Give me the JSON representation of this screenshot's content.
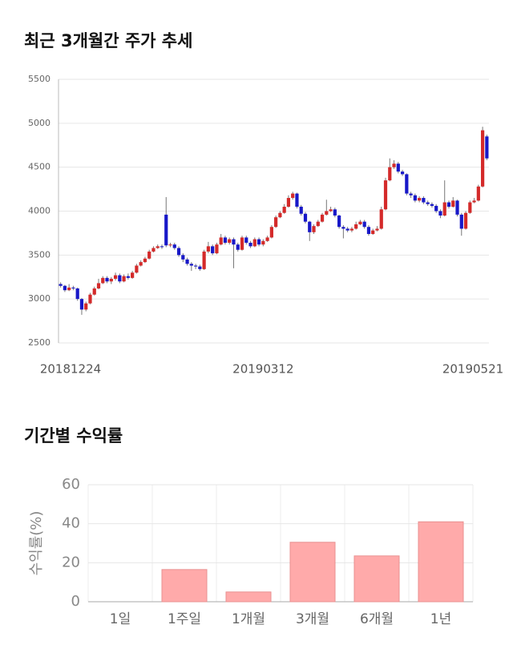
{
  "chart_data": [
    {
      "type": "candlestick",
      "title": "최근 3개월간 주가 추세",
      "categories": [
        "20181224",
        null,
        null,
        null,
        null,
        null,
        null,
        null,
        null,
        null,
        null,
        null,
        null,
        null,
        null,
        null,
        null,
        null,
        null,
        null,
        null,
        null,
        null,
        null,
        null,
        null,
        null,
        null,
        null,
        null,
        null,
        null,
        null,
        null,
        null,
        null,
        null,
        null,
        null,
        null,
        null,
        null,
        null,
        null,
        null,
        null,
        null,
        null,
        "20190312",
        null,
        null,
        null,
        null,
        null,
        null,
        null,
        null,
        null,
        null,
        null,
        null,
        null,
        null,
        null,
        null,
        null,
        null,
        null,
        null,
        null,
        null,
        null,
        null,
        null,
        null,
        null,
        null,
        null,
        null,
        null,
        null,
        null,
        null,
        null,
        null,
        null,
        null,
        null,
        null,
        null,
        null,
        null,
        null,
        null,
        null,
        null,
        null,
        null,
        null,
        null,
        null,
        "20190521"
      ],
      "open": [
        3170,
        3150,
        3100,
        3130,
        3120,
        3000,
        2880,
        2950,
        3050,
        3120,
        3180,
        3240,
        3200,
        3230,
        3270,
        3200,
        3260,
        3240,
        3300,
        3380,
        3420,
        3460,
        3540,
        3580,
        3600,
        3960,
        3610,
        3620,
        3580,
        3500,
        3450,
        3400,
        3380,
        3370,
        3340,
        3540,
        3600,
        3520,
        3620,
        3700,
        3640,
        3680,
        3620,
        3560,
        3700,
        3640,
        3600,
        3680,
        3620,
        3660,
        3700,
        3820,
        3930,
        3980,
        4050,
        4150,
        4200,
        4050,
        3970,
        3880,
        3760,
        3830,
        3880,
        3960,
        4000,
        4020,
        3950,
        3820,
        3800,
        3780,
        3800,
        3850,
        3880,
        3820,
        3740,
        3780,
        3800,
        4020,
        4350,
        4500,
        4540,
        4450,
        4420,
        4200,
        4180,
        4120,
        4150,
        4100,
        4080,
        4060,
        4000,
        3950,
        4100,
        4050,
        4120,
        3960,
        3800,
        3980,
        4100,
        4120,
        4280,
        4850
      ],
      "high": [
        3190,
        3160,
        3170,
        3150,
        3130,
        3010,
        2970,
        3070,
        3140,
        3230,
        3260,
        3260,
        3250,
        3300,
        3290,
        3280,
        3290,
        3320,
        3400,
        3440,
        3480,
        3560,
        3600,
        3620,
        3620,
        4160,
        3640,
        3640,
        3600,
        3520,
        3470,
        3420,
        3400,
        3390,
        3560,
        3650,
        3620,
        3640,
        3740,
        3720,
        3700,
        3700,
        3640,
        3720,
        3720,
        3660,
        3700,
        3700,
        3680,
        3720,
        3840,
        3950,
        4000,
        4080,
        4180,
        4220,
        4210,
        4070,
        3990,
        3890,
        3850,
        3900,
        3980,
        4130,
        4050,
        4040,
        3960,
        3840,
        3820,
        3820,
        3880,
        3900,
        3900,
        3840,
        3800,
        3830,
        4050,
        4380,
        4600,
        4580,
        4560,
        4470,
        4430,
        4220,
        4200,
        4170,
        4170,
        4120,
        4100,
        4080,
        4020,
        4350,
        4120,
        4160,
        4130,
        3980,
        4000,
        4120,
        4150,
        4300,
        4960,
        4870
      ],
      "low": [
        3130,
        3080,
        3090,
        3100,
        2980,
        2820,
        2860,
        2940,
        3040,
        3110,
        3170,
        3180,
        3170,
        3210,
        3180,
        3190,
        3220,
        3230,
        3290,
        3370,
        3410,
        3450,
        3530,
        3570,
        3570,
        3590,
        3590,
        3560,
        3480,
        3420,
        3380,
        3320,
        3340,
        3320,
        3330,
        3520,
        3500,
        3510,
        3610,
        3620,
        3620,
        3350,
        3540,
        3550,
        3620,
        3580,
        3590,
        3600,
        3600,
        3650,
        3690,
        3810,
        3920,
        3970,
        4040,
        4130,
        4030,
        3950,
        3860,
        3660,
        3740,
        3820,
        3870,
        3950,
        3990,
        3930,
        3800,
        3690,
        3760,
        3760,
        3790,
        3840,
        3800,
        3720,
        3730,
        3770,
        3790,
        4010,
        4340,
        4480,
        4430,
        4400,
        4180,
        4150,
        4100,
        4100,
        4080,
        4060,
        4040,
        3980,
        3920,
        3940,
        4030,
        4040,
        3940,
        3720,
        3790,
        3970,
        4090,
        4110,
        4270,
        4580
      ],
      "close": [
        3150,
        3100,
        3130,
        3120,
        3000,
        2880,
        2950,
        3050,
        3120,
        3180,
        3240,
        3200,
        3230,
        3270,
        3200,
        3260,
        3240,
        3300,
        3380,
        3420,
        3460,
        3540,
        3580,
        3600,
        3590,
        3610,
        3620,
        3580,
        3500,
        3450,
        3400,
        3380,
        3370,
        3340,
        3540,
        3600,
        3520,
        3620,
        3700,
        3640,
        3680,
        3620,
        3560,
        3700,
        3640,
        3600,
        3680,
        3620,
        3660,
        3700,
        3820,
        3930,
        3980,
        4050,
        4150,
        4200,
        4050,
        3970,
        3880,
        3760,
        3830,
        3880,
        3960,
        4000,
        4020,
        3950,
        3820,
        3800,
        3780,
        3800,
        3850,
        3880,
        3820,
        3740,
        3780,
        3800,
        4020,
        4350,
        4500,
        4540,
        4450,
        4420,
        4200,
        4180,
        4120,
        4150,
        4100,
        4080,
        4060,
        4000,
        3950,
        4100,
        4050,
        4120,
        3960,
        3800,
        3980,
        4100,
        4120,
        4280,
        4920,
        4600
      ],
      "up_color": "#d42a2a",
      "down_color": "#1818c8",
      "ylim": [
        2500,
        5500
      ],
      "yticks": [
        2500,
        3000,
        3500,
        4000,
        4500,
        5000,
        5500
      ],
      "grid": true
    },
    {
      "type": "bar",
      "title": "기간별 수익률",
      "ylabel": "수익률(%)",
      "categories": [
        "1일",
        "1주일",
        "1개월",
        "3개월",
        "6개월",
        "1년"
      ],
      "values": [
        0,
        16.5,
        5,
        30.5,
        23.5,
        41
      ],
      "color": "#ffaaaa",
      "ylim": [
        0,
        60
      ],
      "yticks": [
        0,
        20,
        40,
        60
      ],
      "grid": true
    }
  ]
}
